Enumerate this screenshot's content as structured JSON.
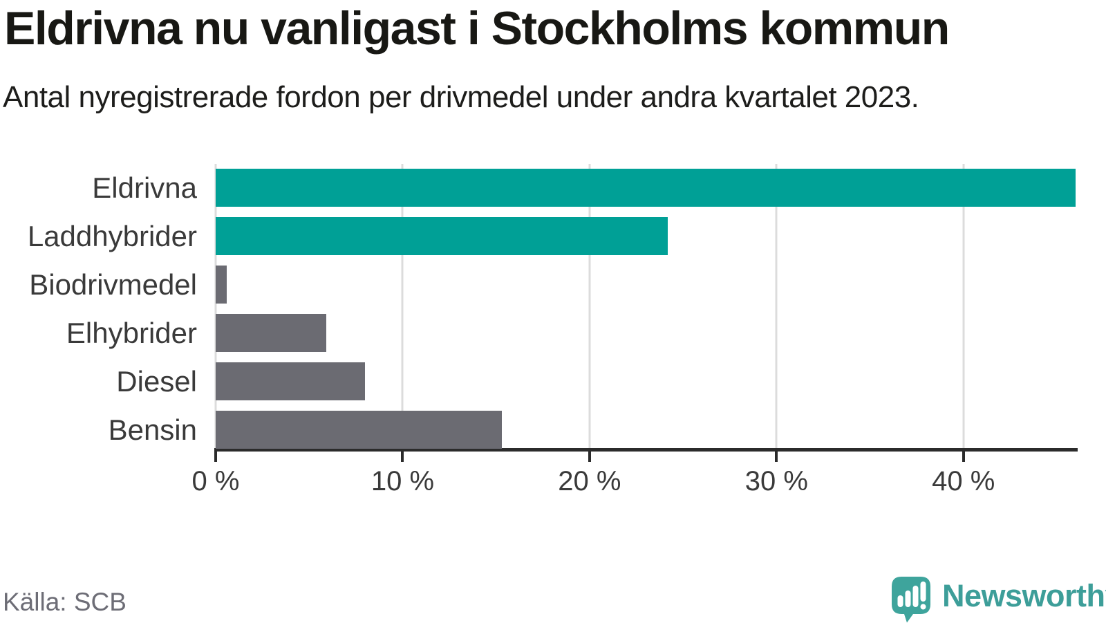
{
  "header": {
    "title": "Eldrivna nu vanligast i Stockholms kommun",
    "subtitle": "Antal nyregistrerade fordon per drivmedel under andra kvartalet 2023."
  },
  "chart_data": {
    "type": "bar",
    "orientation": "horizontal",
    "title": "Eldrivna nu vanligast i Stockholms kommun",
    "subtitle": "Antal nyregistrerade fordon per drivmedel under andra kvartalet 2023.",
    "categories": [
      "Eldrivna",
      "Laddhybrider",
      "Biodrivmedel",
      "Elhybrider",
      "Diesel",
      "Bensin"
    ],
    "values": [
      46,
      24.2,
      0.6,
      5.9,
      8,
      15.3
    ],
    "unit": "%",
    "xlabel": "",
    "ylabel": "",
    "xlim": [
      0,
      46
    ],
    "xticks": [
      0,
      10,
      20,
      30,
      40
    ],
    "xtick_labels": [
      "0 %",
      "10 %",
      "20 %",
      "30 %",
      "40 %"
    ],
    "grid": true,
    "legend_position": "none",
    "bar_colors": [
      "#00A096",
      "#00A096",
      "#6B6B72",
      "#6B6B72",
      "#6B6B72",
      "#6B6B72"
    ],
    "highlight_color": "#00A096",
    "base_color": "#6B6B72",
    "gridline_color": "#DCDCDC",
    "axis_color": "#2B2B2B"
  },
  "footer": {
    "source": "Källa: SCB",
    "brand": "Newsworthy",
    "brand_color": "#3D9E99",
    "logo_color": "#3EA49C"
  }
}
